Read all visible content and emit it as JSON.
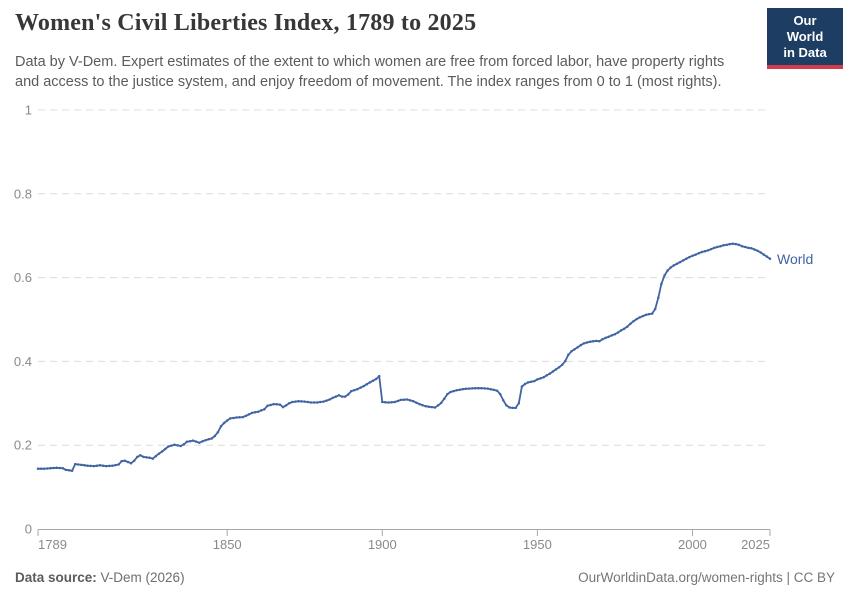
{
  "header": {
    "title": "Women's Civil Liberties Index, 1789 to 2025",
    "subtitle_line1": "Data by V-Dem. Expert estimates of the extent to which women are free from forced labor, have property rights",
    "subtitle_line2": "and access to the justice system, and enjoy freedom of movement. The index ranges from 0 to 1 (most rights).",
    "logo_line1": "Our World",
    "logo_line2": "in Data",
    "logo_bg_color": "#1d3d63",
    "logo_bar_color": "#d13b4b"
  },
  "footer": {
    "source_label": "Data source:",
    "source_value": " V-Dem (2026)",
    "attribution": "OurWorldinData.org/women-rights | CC BY"
  },
  "chart_data": {
    "type": "line",
    "title": "Women's Civil Liberties Index, 1789 to 2025",
    "xlabel": "",
    "ylabel": "",
    "xlim": [
      1789,
      2025
    ],
    "ylim": [
      0,
      1
    ],
    "x_ticks": [
      1789,
      1850,
      1900,
      1950,
      2000,
      2025
    ],
    "y_ticks": [
      0,
      0.2,
      0.4,
      0.6,
      0.8,
      1
    ],
    "y_tick_labels": [
      "0",
      "0.2",
      "0.4",
      "0.6",
      "0.8",
      "1"
    ],
    "grid": "horizontal-dashed",
    "legend_position": "end-of-line-label",
    "colors": {
      "line": "#4164a3",
      "grid": "#dcdcdc",
      "axis": "#a8a8a8",
      "tick_label": "#8a8a8a"
    },
    "series": [
      {
        "name": "World",
        "color": "#4164a3",
        "points": [
          [
            1789,
            0.144
          ],
          [
            1791,
            0.144
          ],
          [
            1793,
            0.145
          ],
          [
            1795,
            0.146
          ],
          [
            1797,
            0.145
          ],
          [
            1798,
            0.141
          ],
          [
            1800,
            0.139
          ],
          [
            1801,
            0.155
          ],
          [
            1803,
            0.153
          ],
          [
            1805,
            0.151
          ],
          [
            1807,
            0.15
          ],
          [
            1809,
            0.152
          ],
          [
            1811,
            0.15
          ],
          [
            1813,
            0.151
          ],
          [
            1815,
            0.154
          ],
          [
            1816,
            0.162
          ],
          [
            1817,
            0.163
          ],
          [
            1819,
            0.157
          ],
          [
            1820,
            0.163
          ],
          [
            1821,
            0.172
          ],
          [
            1822,
            0.176
          ],
          [
            1823,
            0.172
          ],
          [
            1825,
            0.17
          ],
          [
            1826,
            0.168
          ],
          [
            1828,
            0.18
          ],
          [
            1829,
            0.185
          ],
          [
            1831,
            0.197
          ],
          [
            1833,
            0.201
          ],
          [
            1835,
            0.198
          ],
          [
            1836,
            0.202
          ],
          [
            1837,
            0.208
          ],
          [
            1839,
            0.211
          ],
          [
            1841,
            0.206
          ],
          [
            1843,
            0.212
          ],
          [
            1845,
            0.216
          ],
          [
            1846,
            0.222
          ],
          [
            1847,
            0.231
          ],
          [
            1848,
            0.245
          ],
          [
            1849,
            0.253
          ],
          [
            1850,
            0.259
          ],
          [
            1851,
            0.264
          ],
          [
            1853,
            0.266
          ],
          [
            1855,
            0.267
          ],
          [
            1856,
            0.27
          ],
          [
            1858,
            0.277
          ],
          [
            1860,
            0.28
          ],
          [
            1862,
            0.286
          ],
          [
            1863,
            0.294
          ],
          [
            1865,
            0.298
          ],
          [
            1867,
            0.297
          ],
          [
            1868,
            0.291
          ],
          [
            1869,
            0.295
          ],
          [
            1870,
            0.3
          ],
          [
            1871,
            0.303
          ],
          [
            1873,
            0.305
          ],
          [
            1875,
            0.304
          ],
          [
            1877,
            0.302
          ],
          [
            1879,
            0.302
          ],
          [
            1881,
            0.304
          ],
          [
            1883,
            0.309
          ],
          [
            1884,
            0.313
          ],
          [
            1885,
            0.316
          ],
          [
            1886,
            0.319
          ],
          [
            1887,
            0.316
          ],
          [
            1888,
            0.316
          ],
          [
            1889,
            0.321
          ],
          [
            1890,
            0.329
          ],
          [
            1892,
            0.334
          ],
          [
            1894,
            0.341
          ],
          [
            1896,
            0.35
          ],
          [
            1898,
            0.358
          ],
          [
            1899,
            0.365
          ],
          [
            1900,
            0.303
          ],
          [
            1902,
            0.302
          ],
          [
            1904,
            0.303
          ],
          [
            1906,
            0.308
          ],
          [
            1908,
            0.309
          ],
          [
            1910,
            0.305
          ],
          [
            1912,
            0.298
          ],
          [
            1914,
            0.293
          ],
          [
            1916,
            0.291
          ],
          [
            1917,
            0.29
          ],
          [
            1918,
            0.295
          ],
          [
            1919,
            0.301
          ],
          [
            1920,
            0.311
          ],
          [
            1921,
            0.322
          ],
          [
            1922,
            0.327
          ],
          [
            1924,
            0.331
          ],
          [
            1926,
            0.334
          ],
          [
            1928,
            0.335
          ],
          [
            1930,
            0.336
          ],
          [
            1932,
            0.336
          ],
          [
            1934,
            0.335
          ],
          [
            1936,
            0.332
          ],
          [
            1937,
            0.33
          ],
          [
            1938,
            0.322
          ],
          [
            1939,
            0.307
          ],
          [
            1940,
            0.295
          ],
          [
            1941,
            0.29
          ],
          [
            1942,
            0.289
          ],
          [
            1943,
            0.289
          ],
          [
            1944,
            0.3
          ],
          [
            1945,
            0.34
          ],
          [
            1946,
            0.346
          ],
          [
            1947,
            0.35
          ],
          [
            1949,
            0.353
          ],
          [
            1950,
            0.357
          ],
          [
            1952,
            0.362
          ],
          [
            1954,
            0.371
          ],
          [
            1956,
            0.381
          ],
          [
            1957,
            0.386
          ],
          [
            1958,
            0.392
          ],
          [
            1959,
            0.401
          ],
          [
            1960,
            0.416
          ],
          [
            1961,
            0.424
          ],
          [
            1962,
            0.429
          ],
          [
            1963,
            0.434
          ],
          [
            1964,
            0.439
          ],
          [
            1965,
            0.443
          ],
          [
            1966,
            0.445
          ],
          [
            1967,
            0.447
          ],
          [
            1968,
            0.448
          ],
          [
            1969,
            0.449
          ],
          [
            1970,
            0.448
          ],
          [
            1971,
            0.453
          ],
          [
            1972,
            0.456
          ],
          [
            1973,
            0.459
          ],
          [
            1974,
            0.462
          ],
          [
            1975,
            0.465
          ],
          [
            1976,
            0.469
          ],
          [
            1977,
            0.474
          ],
          [
            1978,
            0.478
          ],
          [
            1979,
            0.483
          ],
          [
            1980,
            0.49
          ],
          [
            1981,
            0.496
          ],
          [
            1982,
            0.501
          ],
          [
            1983,
            0.505
          ],
          [
            1984,
            0.508
          ],
          [
            1985,
            0.511
          ],
          [
            1986,
            0.513
          ],
          [
            1987,
            0.514
          ],
          [
            1988,
            0.525
          ],
          [
            1989,
            0.552
          ],
          [
            1990,
            0.585
          ],
          [
            1991,
            0.605
          ],
          [
            1992,
            0.617
          ],
          [
            1993,
            0.624
          ],
          [
            1994,
            0.629
          ],
          [
            1995,
            0.633
          ],
          [
            1996,
            0.637
          ],
          [
            1997,
            0.641
          ],
          [
            1998,
            0.645
          ],
          [
            1999,
            0.649
          ],
          [
            2000,
            0.652
          ],
          [
            2001,
            0.655
          ],
          [
            2002,
            0.658
          ],
          [
            2003,
            0.661
          ],
          [
            2004,
            0.663
          ],
          [
            2005,
            0.665
          ],
          [
            2006,
            0.668
          ],
          [
            2007,
            0.671
          ],
          [
            2008,
            0.673
          ],
          [
            2009,
            0.675
          ],
          [
            2010,
            0.677
          ],
          [
            2011,
            0.678
          ],
          [
            2012,
            0.68
          ],
          [
            2013,
            0.681
          ],
          [
            2014,
            0.68
          ],
          [
            2015,
            0.678
          ],
          [
            2016,
            0.675
          ],
          [
            2017,
            0.673
          ],
          [
            2018,
            0.671
          ],
          [
            2019,
            0.67
          ],
          [
            2020,
            0.667
          ],
          [
            2021,
            0.664
          ],
          [
            2022,
            0.66
          ],
          [
            2023,
            0.655
          ],
          [
            2024,
            0.65
          ],
          [
            2025,
            0.645
          ]
        ]
      }
    ]
  }
}
